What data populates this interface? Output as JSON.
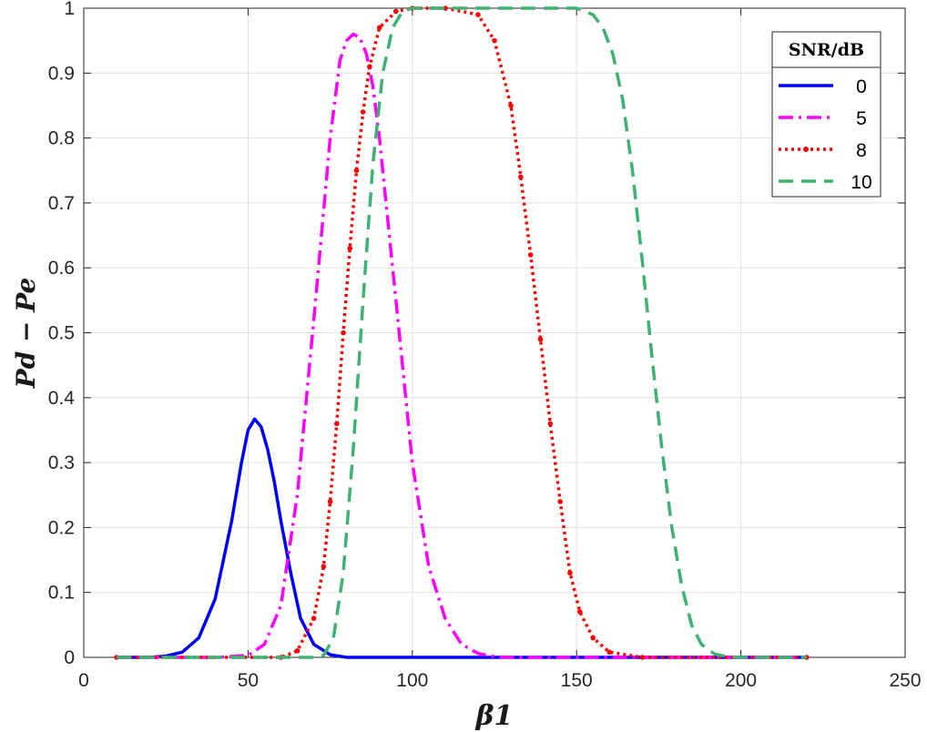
{
  "chart_data": {
    "type": "line",
    "title": "",
    "xlabel": "β1",
    "ylabel": "Pd − Pe",
    "xlim": [
      0,
      250
    ],
    "ylim": [
      0,
      1
    ],
    "xticks": [
      0,
      50,
      100,
      150,
      200,
      250
    ],
    "yticks": [
      0,
      0.1,
      0.2,
      0.3,
      0.4,
      0.5,
      0.6,
      0.7,
      0.8,
      0.9,
      1
    ],
    "grid": true,
    "legend": {
      "title": "SNR/dB",
      "placement": "top-right"
    },
    "series": [
      {
        "name": "0",
        "color": "#0000ff",
        "style": "solid",
        "x": [
          10,
          20,
          25,
          30,
          35,
          40,
          45,
          48,
          50,
          52,
          54,
          56,
          58,
          60,
          63,
          66,
          70,
          75,
          80,
          90,
          100,
          150,
          220
        ],
        "y": [
          0,
          0,
          0.002,
          0.008,
          0.03,
          0.09,
          0.21,
          0.3,
          0.35,
          0.367,
          0.355,
          0.32,
          0.27,
          0.21,
          0.13,
          0.06,
          0.02,
          0.004,
          0,
          0,
          0,
          0,
          0
        ]
      },
      {
        "name": "5",
        "color": "#ff00ff",
        "style": "dashdot",
        "x": [
          10,
          40,
          50,
          55,
          60,
          65,
          70,
          75,
          78,
          80,
          82,
          84,
          86,
          88,
          90,
          95,
          100,
          105,
          110,
          115,
          120,
          125,
          130,
          220
        ],
        "y": [
          0,
          0,
          0.003,
          0.02,
          0.08,
          0.25,
          0.52,
          0.8,
          0.92,
          0.95,
          0.96,
          0.955,
          0.93,
          0.88,
          0.8,
          0.55,
          0.3,
          0.14,
          0.06,
          0.02,
          0.006,
          0.001,
          0,
          0
        ]
      },
      {
        "name": "8",
        "color": "#ff0000",
        "style": "dotted",
        "x": [
          10,
          60,
          65,
          70,
          73,
          75,
          77,
          79,
          81,
          83,
          85,
          87,
          90,
          95,
          100,
          110,
          120,
          125,
          130,
          133,
          136,
          139,
          142,
          145,
          148,
          151,
          155,
          160,
          170,
          220
        ],
        "y": [
          0,
          0,
          0.01,
          0.06,
          0.14,
          0.24,
          0.36,
          0.5,
          0.63,
          0.75,
          0.84,
          0.91,
          0.97,
          0.995,
          1,
          1,
          0.99,
          0.95,
          0.85,
          0.74,
          0.62,
          0.49,
          0.36,
          0.24,
          0.13,
          0.07,
          0.03,
          0.008,
          0,
          0
        ]
      },
      {
        "name": "10",
        "color": "#3cb371",
        "style": "dashed",
        "x": [
          10,
          70,
          73,
          76,
          79,
          82,
          85,
          88,
          91,
          94,
          97,
          100,
          150,
          155,
          158,
          161,
          164,
          167,
          170,
          173,
          176,
          179,
          182,
          185,
          188,
          192,
          196,
          200,
          220
        ],
        "y": [
          0,
          0,
          0.003,
          0.03,
          0.13,
          0.32,
          0.55,
          0.76,
          0.9,
          0.97,
          0.995,
          1,
          1,
          0.99,
          0.97,
          0.93,
          0.86,
          0.75,
          0.61,
          0.46,
          0.32,
          0.2,
          0.11,
          0.05,
          0.02,
          0.005,
          0.001,
          0,
          0
        ]
      }
    ]
  }
}
